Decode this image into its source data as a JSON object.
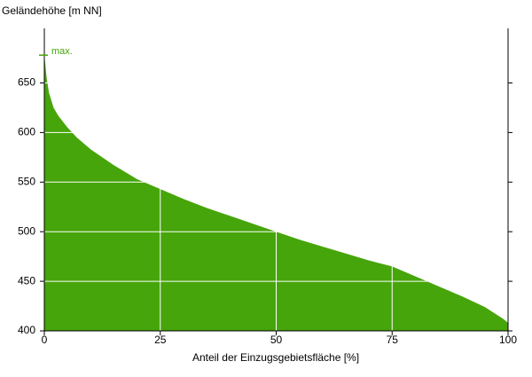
{
  "chart_data": {
    "type": "area",
    "y_label": "Geländehöhe [m NN]",
    "x_label": "Anteil der Einzugsgebietsfläche [%]",
    "x": [
      0,
      0.5,
      1,
      2,
      3,
      5,
      7,
      10,
      15,
      20,
      25,
      30,
      35,
      40,
      45,
      50,
      55,
      60,
      65,
      70,
      75,
      80,
      85,
      90,
      95,
      98,
      99,
      100
    ],
    "values": [
      678,
      655,
      640,
      625,
      617,
      605,
      595,
      583,
      567,
      553,
      543,
      533,
      524,
      516,
      508,
      500,
      492,
      485,
      478,
      471,
      465,
      455,
      445,
      435,
      424,
      415,
      412,
      408
    ],
    "color": "#46a50a",
    "xlim": [
      0,
      100
    ],
    "xticks": [
      0,
      25,
      50,
      75,
      100
    ],
    "ylim": [
      400,
      705
    ],
    "yticks": [
      400,
      450,
      500,
      550,
      600,
      650
    ],
    "grid": true,
    "annotation": {
      "text": "max.",
      "value": 678
    }
  }
}
